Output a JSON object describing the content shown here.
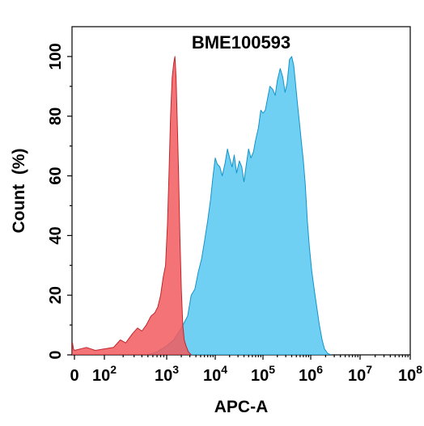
{
  "chart_data": {
    "type": "area",
    "title": "BME100593",
    "xlabel": "APC-A",
    "ylabel": "Count  (%)",
    "x_scale": "biexponential",
    "xlim": [
      -100,
      100000000
    ],
    "ylim": [
      0,
      110
    ],
    "x_tick_labels": [
      {
        "value": 0,
        "base": "0",
        "exp": ""
      },
      {
        "value": 100,
        "base": "10",
        "exp": "2"
      },
      {
        "value": 1000,
        "base": "10",
        "exp": "3"
      },
      {
        "value": 10000,
        "base": "10",
        "exp": "4"
      },
      {
        "value": 100000,
        "base": "10",
        "exp": "5"
      },
      {
        "value": 1000000,
        "base": "10",
        "exp": "6"
      },
      {
        "value": 10000000,
        "base": "10",
        "exp": "7"
      },
      {
        "value": 100000000,
        "base": "10",
        "exp": "8"
      }
    ],
    "y_ticks": [
      0,
      20,
      40,
      60,
      80,
      100
    ],
    "grid": false,
    "legend": "none",
    "series": [
      {
        "color": "#f25a5e",
        "stroke": "#c0262b",
        "points": [
          [
            -100,
            0
          ],
          [
            -80,
            4
          ],
          [
            -40,
            2
          ],
          [
            0,
            1.5
          ],
          [
            40,
            2.5
          ],
          [
            70,
            1.5
          ],
          [
            100,
            2
          ],
          [
            140,
            2.5
          ],
          [
            180,
            5
          ],
          [
            220,
            4
          ],
          [
            280,
            7
          ],
          [
            340,
            9
          ],
          [
            400,
            8
          ],
          [
            470,
            10
          ],
          [
            560,
            13
          ],
          [
            640,
            14
          ],
          [
            720,
            16
          ],
          [
            800,
            20
          ],
          [
            880,
            26
          ],
          [
            960,
            30
          ],
          [
            1040,
            44
          ],
          [
            1120,
            62
          ],
          [
            1200,
            80
          ],
          [
            1300,
            93
          ],
          [
            1400,
            98
          ],
          [
            1480,
            100
          ],
          [
            1560,
            93
          ],
          [
            1640,
            80
          ],
          [
            1750,
            62
          ],
          [
            1870,
            40
          ],
          [
            2000,
            22
          ],
          [
            2150,
            10
          ],
          [
            2300,
            5
          ],
          [
            2500,
            3
          ],
          [
            2800,
            1
          ],
          [
            3200,
            0
          ]
        ]
      },
      {
        "color": "#5fcbf3",
        "stroke": "#1493c8",
        "points": [
          [
            500,
            0
          ],
          [
            700,
            1
          ],
          [
            1000,
            3
          ],
          [
            1400,
            5
          ],
          [
            2000,
            9
          ],
          [
            2700,
            13
          ],
          [
            3200,
            20
          ],
          [
            3800,
            22
          ],
          [
            4500,
            28
          ],
          [
            5200,
            32
          ],
          [
            6000,
            38
          ],
          [
            7000,
            45
          ],
          [
            8000,
            52
          ],
          [
            9000,
            60
          ],
          [
            10000,
            66
          ],
          [
            11000,
            64
          ],
          [
            12500,
            63
          ],
          [
            14000,
            60
          ],
          [
            16000,
            64
          ],
          [
            18000,
            69
          ],
          [
            20000,
            66
          ],
          [
            22500,
            63
          ],
          [
            25000,
            67
          ],
          [
            28000,
            61
          ],
          [
            32000,
            65
          ],
          [
            36000,
            63
          ],
          [
            40000,
            58
          ],
          [
            45000,
            64
          ],
          [
            50000,
            69
          ],
          [
            56000,
            66
          ],
          [
            63000,
            68
          ],
          [
            70000,
            72
          ],
          [
            80000,
            76
          ],
          [
            90000,
            82
          ],
          [
            100000,
            81
          ],
          [
            112000,
            82
          ],
          [
            125000,
            86
          ],
          [
            140000,
            90
          ],
          [
            160000,
            89
          ],
          [
            180000,
            87
          ],
          [
            200000,
            92
          ],
          [
            230000,
            96
          ],
          [
            260000,
            93
          ],
          [
            290000,
            88
          ],
          [
            320000,
            91
          ],
          [
            360000,
            99
          ],
          [
            400000,
            100
          ],
          [
            440000,
            97
          ],
          [
            480000,
            91
          ],
          [
            530000,
            84
          ],
          [
            580000,
            78
          ],
          [
            640000,
            71
          ],
          [
            700000,
            65
          ],
          [
            770000,
            57
          ],
          [
            850000,
            45
          ],
          [
            940000,
            36
          ],
          [
            1050000,
            28
          ],
          [
            1200000,
            21
          ],
          [
            1350000,
            15
          ],
          [
            1500000,
            10
          ],
          [
            1700000,
            5
          ],
          [
            1900000,
            2
          ],
          [
            2200000,
            0.5
          ],
          [
            2600000,
            0
          ]
        ]
      }
    ]
  }
}
